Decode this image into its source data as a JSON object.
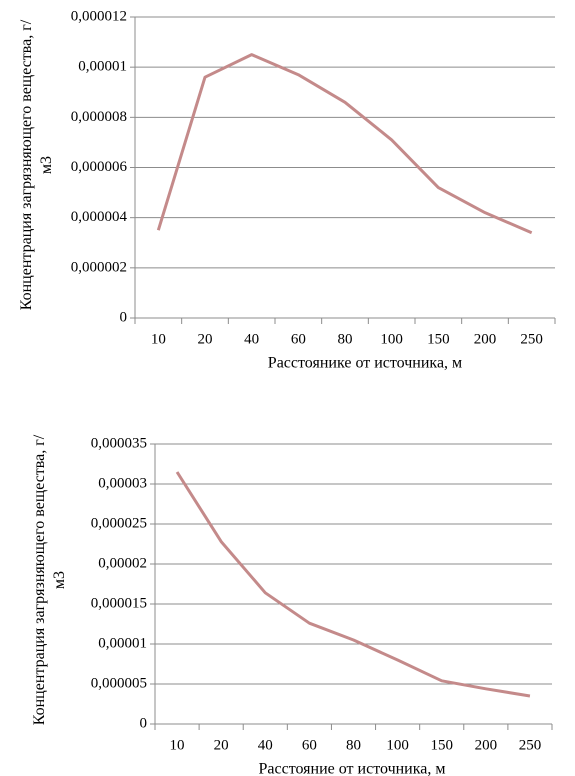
{
  "chart_data": [
    {
      "type": "line",
      "x_label": "Расстоянике от источника, м",
      "y_label": "Концентрация загрязняющего вещества, г/м3",
      "categories": [
        "10",
        "20",
        "40",
        "60",
        "80",
        "100",
        "150",
        "200",
        "250"
      ],
      "series": [
        {
          "color": "#c48a8a",
          "values": [
            3.5e-06,
            9.6e-06,
            1.05e-05,
            9.7e-06,
            8.6e-06,
            7.1e-06,
            5.2e-06,
            4.2e-06,
            3.4e-06
          ]
        }
      ],
      "ylim": [
        0,
        1.2e-05
      ],
      "yticks": [
        0,
        {
          "value": 2e-06,
          "label": "0,000002"
        },
        {
          "value": 4e-06,
          "label": "0,000004"
        },
        {
          "value": 6e-06,
          "label": "0,000006"
        },
        {
          "value": 8e-06,
          "label": "0,000008"
        },
        {
          "value": 1e-05,
          "label": "0,00001"
        },
        {
          "value": 1.2e-05,
          "label": "0,000012"
        }
      ],
      "grid": true
    },
    {
      "type": "line",
      "x_label": "Расстояние от источника, м",
      "y_label": "Концентрация загрязняющего вещества, г/м3",
      "categories": [
        "10",
        "20",
        "40",
        "60",
        "80",
        "100",
        "150",
        "200",
        "250"
      ],
      "series": [
        {
          "color": "#c48a8a",
          "values": [
            3.15e-05,
            2.28e-05,
            1.64e-05,
            1.26e-05,
            1.05e-05,
            8e-06,
            5.4e-06,
            4.4e-06,
            3.5e-06
          ]
        }
      ],
      "ylim": [
        0,
        3.5e-05
      ],
      "yticks": [
        0,
        {
          "value": 5e-06,
          "label": "0,000005"
        },
        {
          "value": 1e-05,
          "label": "0,00001"
        },
        {
          "value": 1.5e-05,
          "label": "0,000015"
        },
        {
          "value": 2e-05,
          "label": "0,00002"
        },
        {
          "value": 2.5e-05,
          "label": "0,000025"
        },
        {
          "value": 3e-05,
          "label": "0,00003"
        },
        {
          "value": 3.5e-05,
          "label": "0,000035"
        }
      ],
      "grid": true
    }
  ]
}
